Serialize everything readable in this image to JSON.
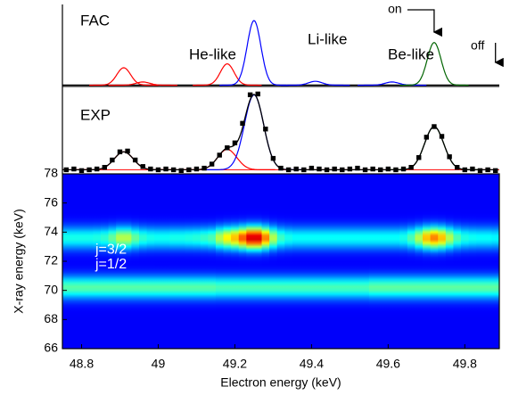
{
  "chart_data": [
    {
      "type": "peaks",
      "label": "FAC",
      "xlim": [
        48.75,
        49.89
      ],
      "ylim": [
        -0.02,
        1.25
      ],
      "width": 0.018,
      "baseline_color": "#000000",
      "series": [
        {
          "name": "He-like",
          "color": "#ff0000",
          "peaks": [
            {
              "x": 48.91,
              "height": 0.27
            },
            {
              "x": 48.96,
              "height": 0.05
            },
            {
              "x": 49.18,
              "height": 0.33
            }
          ]
        },
        {
          "name": "Li-like",
          "color": "#0000ff",
          "peaks": [
            {
              "x": 49.25,
              "height": 1.0
            },
            {
              "x": 49.41,
              "height": 0.06
            },
            {
              "x": 49.61,
              "height": 0.05
            }
          ]
        },
        {
          "name": "Be-like",
          "color": "#006400",
          "peaks": [
            {
              "x": 49.72,
              "height": 0.66
            }
          ]
        }
      ],
      "annotations": [
        {
          "text": "on",
          "x": 49.72
        },
        {
          "text": "off",
          "x": 49.88
        }
      ]
    },
    {
      "type": "scatter",
      "label": "EXP",
      "xlim": [
        48.75,
        49.89
      ],
      "ylim": [
        0,
        1.05
      ],
      "color": "#000000",
      "x": [
        48.76,
        48.78,
        48.8,
        48.82,
        48.84,
        48.86,
        48.88,
        48.9,
        48.92,
        48.94,
        48.96,
        48.98,
        49.0,
        49.02,
        49.04,
        49.06,
        49.08,
        49.1,
        49.12,
        49.14,
        49.16,
        49.18,
        49.2,
        49.22,
        49.24,
        49.26,
        49.28,
        49.3,
        49.32,
        49.34,
        49.36,
        49.38,
        49.4,
        49.42,
        49.44,
        49.46,
        49.48,
        49.5,
        49.52,
        49.54,
        49.56,
        49.58,
        49.6,
        49.62,
        49.64,
        49.66,
        49.68,
        49.7,
        49.72,
        49.74,
        49.76,
        49.78,
        49.8,
        49.82,
        49.84,
        49.86,
        49.88
      ],
      "values": [
        0.05,
        0.06,
        0.04,
        0.05,
        0.06,
        0.08,
        0.17,
        0.27,
        0.28,
        0.17,
        0.09,
        0.06,
        0.05,
        0.06,
        0.05,
        0.04,
        0.05,
        0.06,
        0.07,
        0.12,
        0.23,
        0.32,
        0.38,
        0.62,
        0.97,
        0.98,
        0.55,
        0.19,
        0.07,
        0.05,
        0.06,
        0.05,
        0.07,
        0.06,
        0.05,
        0.06,
        0.05,
        0.06,
        0.07,
        0.05,
        0.06,
        0.05,
        0.06,
        0.05,
        0.06,
        0.08,
        0.2,
        0.45,
        0.58,
        0.46,
        0.21,
        0.08,
        0.05,
        0.06,
        0.04,
        0.05,
        0.04
      ],
      "fit": {
        "baseline": 0.05,
        "baseline_color": "#ff0000",
        "width": 0.025,
        "color": "#000000",
        "peaks": [
          {
            "x": 48.91,
            "height": 0.22,
            "color": "#ff0000"
          },
          {
            "x": 49.18,
            "height": 0.25,
            "color": "#ff0000"
          },
          {
            "x": 49.25,
            "height": 0.92,
            "color": "#0000ff"
          },
          {
            "x": 49.72,
            "height": 0.53,
            "color": "#006400"
          }
        ]
      }
    },
    {
      "type": "heatmap",
      "xlim": [
        48.75,
        49.89
      ],
      "ylim": [
        66,
        78
      ],
      "yticks": [
        66,
        68,
        70,
        72,
        74,
        76,
        78
      ],
      "xticks": [
        48.8,
        49,
        49.2,
        49.4,
        49.6,
        49.8
      ],
      "xlabel": "Electron energy (keV)",
      "ylabel": "X-ray energy (keV)",
      "x": [
        48.76,
        48.78,
        48.8,
        48.82,
        48.84,
        48.86,
        48.88,
        48.9,
        48.92,
        48.94,
        48.96,
        48.98,
        49.0,
        49.02,
        49.04,
        49.06,
        49.08,
        49.1,
        49.12,
        49.14,
        49.16,
        49.18,
        49.2,
        49.22,
        49.24,
        49.26,
        49.28,
        49.3,
        49.32,
        49.34,
        49.36,
        49.38,
        49.4,
        49.42,
        49.44,
        49.46,
        49.48,
        49.5,
        49.52,
        49.54,
        49.56,
        49.58,
        49.6,
        49.62,
        49.64,
        49.66,
        49.68,
        49.7,
        49.72,
        49.74,
        49.76,
        49.78,
        49.8,
        49.82,
        49.84,
        49.86,
        49.88
      ],
      "bands": [
        {
          "label": "j=1/2",
          "energy": 73.6,
          "intensity": [
            0.35,
            0.35,
            0.35,
            0.35,
            0.36,
            0.38,
            0.45,
            0.55,
            0.55,
            0.45,
            0.38,
            0.35,
            0.34,
            0.34,
            0.35,
            0.35,
            0.36,
            0.37,
            0.39,
            0.42,
            0.55,
            0.65,
            0.72,
            0.85,
            1.0,
            1.0,
            0.8,
            0.55,
            0.4,
            0.35,
            0.33,
            0.33,
            0.33,
            0.33,
            0.33,
            0.33,
            0.33,
            0.33,
            0.33,
            0.33,
            0.33,
            0.33,
            0.33,
            0.33,
            0.35,
            0.42,
            0.55,
            0.72,
            0.8,
            0.72,
            0.55,
            0.42,
            0.36,
            0.34,
            0.33,
            0.33,
            0.32
          ]
        },
        {
          "label": "j=3/2",
          "energy": 70.2,
          "intensity": [
            0.43,
            0.43,
            0.43,
            0.43,
            0.43,
            0.43,
            0.43,
            0.43,
            0.43,
            0.43,
            0.43,
            0.43,
            0.43,
            0.43,
            0.43,
            0.43,
            0.43,
            0.43,
            0.43,
            0.43,
            0.41,
            0.41,
            0.41,
            0.41,
            0.41,
            0.41,
            0.41,
            0.41,
            0.41,
            0.41,
            0.41,
            0.41,
            0.41,
            0.41,
            0.41,
            0.41,
            0.41,
            0.41,
            0.41,
            0.41,
            0.44,
            0.44,
            0.44,
            0.44,
            0.44,
            0.44,
            0.44,
            0.44,
            0.44,
            0.44,
            0.44,
            0.44,
            0.44,
            0.44,
            0.44,
            0.44,
            0.44
          ]
        }
      ]
    }
  ]
}
